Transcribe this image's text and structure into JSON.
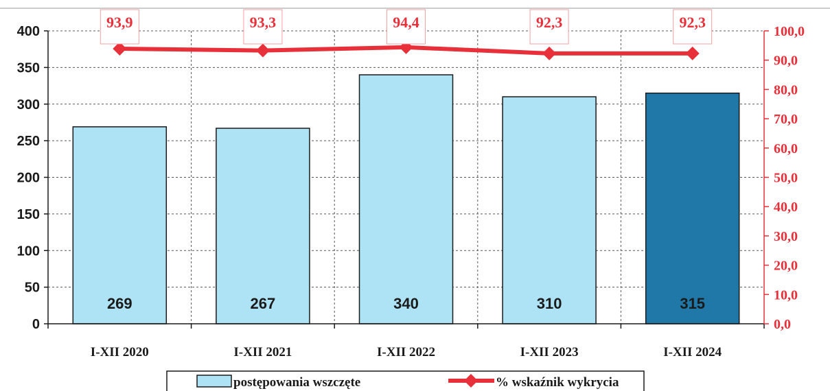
{
  "chart_data": {
    "type": "bar",
    "categories": [
      "I-XII 2020",
      "I-XII 2021",
      "I-XII 2022",
      "I-XII 2023",
      "I-XII 2024"
    ],
    "series": [
      {
        "name": "postępowania wszczęte",
        "kind": "bar",
        "axis": "left",
        "values": [
          269,
          267,
          340,
          310,
          315
        ],
        "value_labels": [
          "269",
          "267",
          "340",
          "310",
          "315"
        ],
        "colors": [
          "#aee3f5",
          "#aee3f5",
          "#aee3f5",
          "#aee3f5",
          "#1f78a8"
        ]
      },
      {
        "name": "% wskaźnik wykrycia",
        "kind": "line",
        "axis": "right",
        "values": [
          93.9,
          93.3,
          94.4,
          92.3,
          92.3
        ],
        "value_labels": [
          "93,9",
          "93,3",
          "94,4",
          "92,3",
          "92,3"
        ],
        "color": "#e8303a"
      }
    ],
    "y_left": {
      "range": [
        0,
        400
      ],
      "ticks": [
        0,
        50,
        100,
        150,
        200,
        250,
        300,
        350,
        400
      ],
      "tick_labels": [
        "0",
        "50",
        "100",
        "150",
        "200",
        "250",
        "300",
        "350",
        "400"
      ]
    },
    "y_right": {
      "range": [
        0,
        100
      ],
      "ticks": [
        0,
        10,
        20,
        30,
        40,
        50,
        60,
        70,
        80,
        90,
        100
      ],
      "tick_labels": [
        "0,0",
        "10,0",
        "20,0",
        "30,0",
        "40,0",
        "50,0",
        "60,0",
        "70,0",
        "80,0",
        "90,0",
        "100,0"
      ]
    },
    "grid": true,
    "legend": "bottom"
  }
}
